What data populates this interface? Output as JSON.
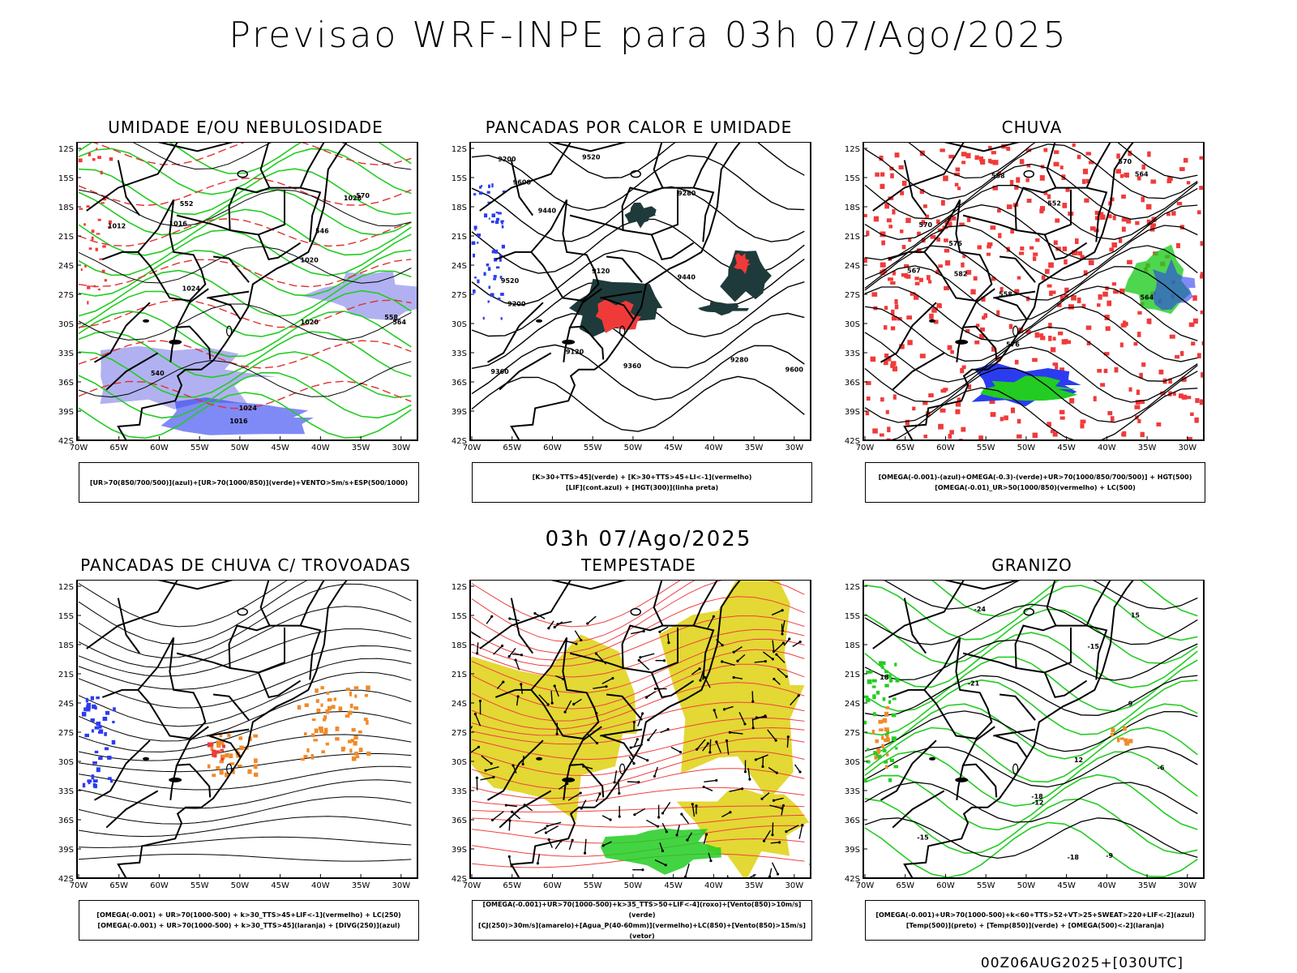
{
  "header": {
    "title": "Previsao WRF-INPE  para 03h 07/Ago/2025"
  },
  "subtitle": "03h 07/Ago/2025",
  "footer": "00Z06AUG2025+[030UTC]",
  "axes": {
    "lat_labels": [
      "12S",
      "15S",
      "18S",
      "21S",
      "24S",
      "27S",
      "30S",
      "33S",
      "36S",
      "39S",
      "42S"
    ],
    "lon_labels": [
      "70W",
      "65W",
      "60W",
      "55W",
      "50W",
      "45W",
      "40W",
      "35W",
      "30W"
    ]
  },
  "colors": {
    "blue": "#2b3cf0",
    "green": "#22cc22",
    "red": "#f03a3a",
    "orange": "#f08a2a",
    "yellow": "#e3d834",
    "lavender": "#a9a9f0",
    "darkteal": "#1f3a3a"
  },
  "panels": [
    {
      "title": "UMIDADE E/OU NEBULOSIDADE",
      "legend": [
        "[UR>70(850/700/500)](azul)+[UR>70(1000/850)](verde)+VENTO>5m/s+ESP(500/1000)"
      ],
      "labels": [
        "1012",
        "1016",
        "1020",
        "1024",
        "1028",
        "1016",
        "1020",
        "1024",
        "570",
        "564",
        "558",
        "552",
        "546",
        "540"
      ]
    },
    {
      "title": "PANCADAS POR CALOR E UMIDADE",
      "legend": [
        "[K>30+TTS>45](verde) + [K>30+TTS>45+LI<-1](vermelho)",
        "[LIF](cont.azul) + [HGT(300)](linha preta)"
      ],
      "labels": [
        "9600",
        "9520",
        "9440",
        "9360",
        "9280",
        "9200",
        "9120",
        "9600",
        "9520",
        "9440",
        "9360",
        "9280",
        "9200",
        "9120"
      ]
    },
    {
      "title": "CHUVA",
      "legend": [
        "[OMEGA(-0.001)-(azul)+OMEGA(-0.3)-(verde)+UR>70(1000/850/700/500)] + HGT(500)",
        "[OMEGA(-0.01)_UR>50(1000/850)(vermelho) + LC(500)"
      ],
      "labels": [
        "582",
        "576",
        "576",
        "570",
        "564",
        "558",
        "552",
        "570",
        "567",
        "564",
        "558"
      ]
    },
    {
      "title": "PANCADAS DE CHUVA C/ TROVOADAS",
      "legend": [
        "[OMEGA(-0.001) + UR>70(1000-500) + k>30_TTS>45+LIF<-1](vermelho) + LC(250)",
        "[OMEGA(-0.001) + UR>70(1000-500) + k>30_TTS>45](laranja) + [DIVG(250)](azul)"
      ]
    },
    {
      "title": "TEMPESTADE",
      "legend": [
        "[OMEGA(-0.001)+UR>70(1000-500)+k>35_TTS>50+LIF<-4](roxo)+[Vento(850)>10m/s](verde)",
        "[CJ(250)>30m/s](amarelo)+[Agua_P(40-60mm)](vermelho)+LC(850)+[Vento(850)>15m/s](vetor)"
      ]
    },
    {
      "title": "GRANIZO",
      "legend": [
        "[OMEGA(-0.001)+UR>70(1000-500)+k<60+TTS>52+VT>25+SWEAT>220+LIF<-2](azul)",
        "[Temp(500)](preto) + [Temp(850)](verde) + [OMEGA(500)<-2](laranja)"
      ],
      "labels": [
        "-6",
        "-9",
        "-12",
        "-15",
        "-18",
        "-21",
        "-24",
        "-15",
        "-18",
        "9",
        "12",
        "15",
        "18"
      ]
    }
  ]
}
